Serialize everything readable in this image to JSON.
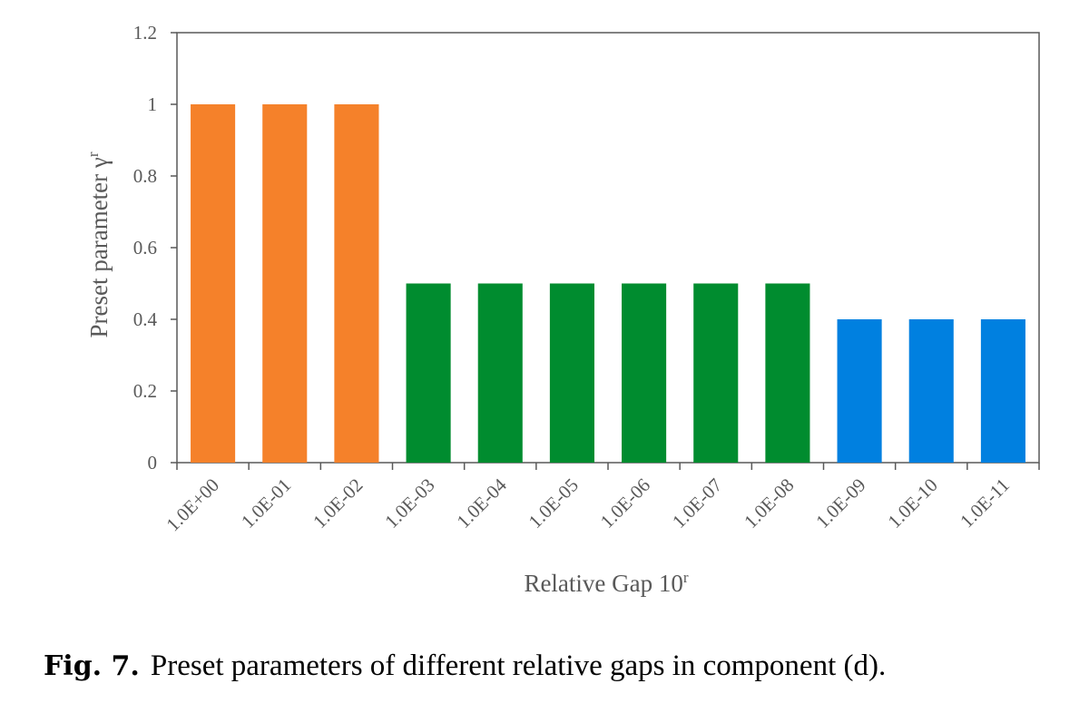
{
  "chart_data": {
    "type": "bar",
    "categories": [
      "1.0E+00",
      "1.0E-01",
      "1.0E-02",
      "1.0E-03",
      "1.0E-04",
      "1.0E-05",
      "1.0E-06",
      "1.0E-07",
      "1.0E-08",
      "1.0E-09",
      "1.0E-10",
      "1.0E-11"
    ],
    "values": [
      1,
      1,
      1,
      0.5,
      0.5,
      0.5,
      0.5,
      0.5,
      0.5,
      0.4,
      0.4,
      0.4
    ],
    "bar_colors": [
      "#F5812A",
      "#F5812A",
      "#F5812A",
      "#008C2F",
      "#008C2F",
      "#008C2F",
      "#008C2F",
      "#008C2F",
      "#008C2F",
      "#0080E0",
      "#0080E0",
      "#0080E0"
    ],
    "xlabel": "Relative Gap 10",
    "xlabel_sup": "r",
    "ylabel": "Preset parameter γ",
    "ylabel_sup": "r",
    "ylim": [
      0,
      1.2
    ],
    "yticks": [
      0,
      0.2,
      0.4,
      0.6,
      0.8,
      1,
      1.2
    ],
    "ytick_labels": [
      "0",
      "0.2",
      "0.4",
      "0.6",
      "0.8",
      "1",
      "1.2"
    ],
    "grid": false,
    "legend": "none"
  },
  "caption": {
    "label": "Fig. 7.",
    "text": "Preset parameters of different relative gaps in component (d)."
  },
  "colors": {
    "axis": "#595959",
    "orange": "#F5812A",
    "green": "#008C2F",
    "blue": "#0080E0"
  }
}
